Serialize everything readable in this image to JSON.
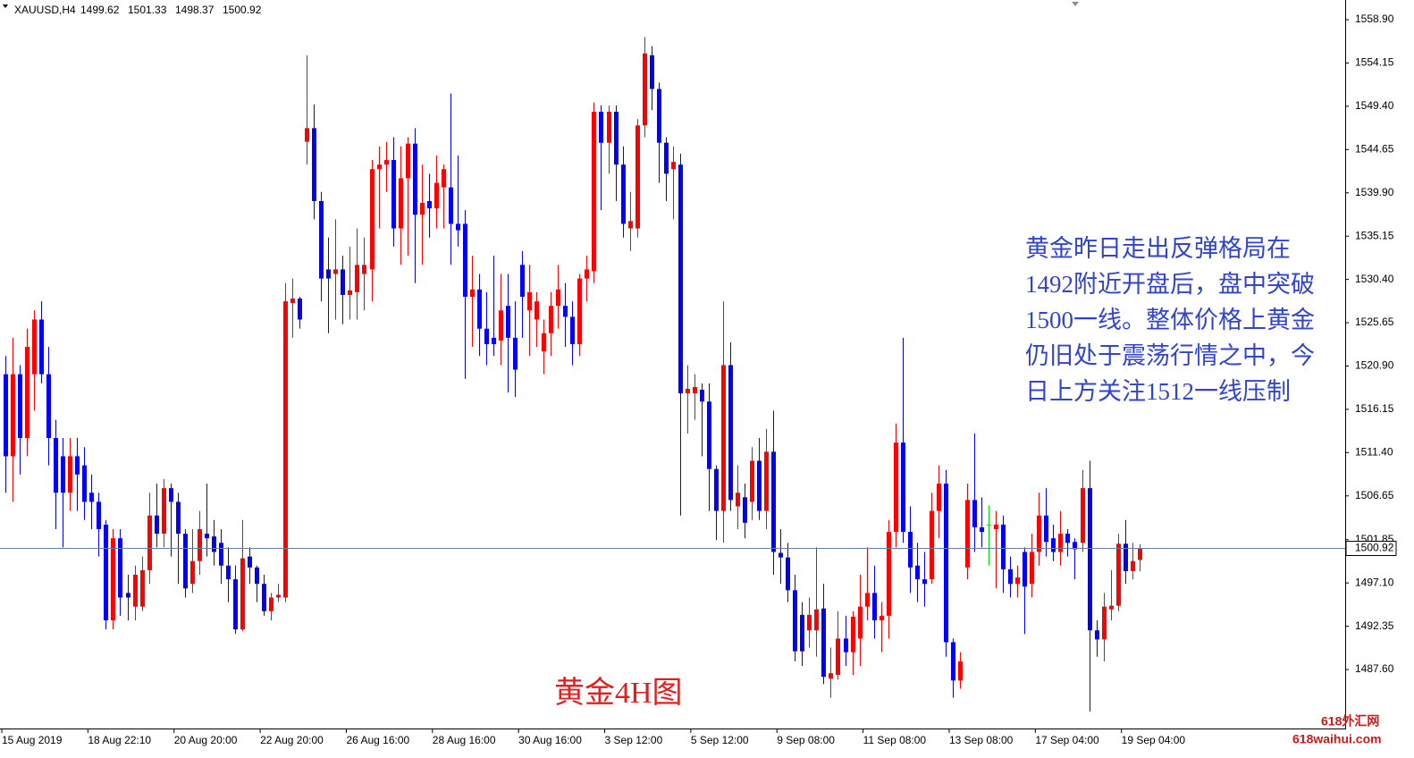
{
  "chart_data": {
    "type": "candlestick",
    "symbol": "XAUUSD,H4",
    "up_color": "#ff0000",
    "down_color": "#0000ff",
    "doji_color": "#00dd00",
    "ylim": [
      1481.13,
      1561.06
    ],
    "yticks": [
      {
        "value": 1558.9,
        "label": "1558.90"
      },
      1554.15,
      {
        "value": 1549.4,
        "label": "1549.40"
      },
      1544.65,
      {
        "value": 1539.9,
        "label": "1539.90"
      },
      1535.15,
      {
        "value": 1530.4,
        "label": "1530.40"
      },
      1525.65,
      {
        "value": 1520.9,
        "label": "1520.90"
      },
      1516.15,
      {
        "value": 1511.4,
        "label": "1511.40"
      },
      1506.65,
      1501.85,
      {
        "value": 1497.1,
        "label": "1497.10"
      },
      1492.35,
      {
        "value": 1487.6,
        "label": "1487.60"
      }
    ],
    "categories": [
      "15 Aug 2019",
      null,
      null,
      null,
      null,
      null,
      null,
      null,
      null,
      null,
      null,
      null,
      "18 Aug 22:10",
      null,
      null,
      null,
      null,
      null,
      null,
      null,
      null,
      null,
      null,
      null,
      "20 Aug 20:00",
      null,
      null,
      null,
      null,
      null,
      null,
      null,
      null,
      null,
      null,
      null,
      "22 Aug 20:00",
      null,
      null,
      null,
      null,
      null,
      null,
      null,
      null,
      null,
      null,
      null,
      "26 Aug 16:00",
      null,
      null,
      null,
      null,
      null,
      null,
      null,
      null,
      null,
      null,
      null,
      "28 Aug 16:00",
      null,
      null,
      null,
      null,
      null,
      null,
      null,
      null,
      null,
      null,
      null,
      "30 Aug 16:00",
      null,
      null,
      null,
      null,
      null,
      null,
      null,
      null,
      null,
      null,
      null,
      "3 Sep 12:00",
      null,
      null,
      null,
      null,
      null,
      null,
      null,
      null,
      null,
      null,
      null,
      "5 Sep 12:00",
      null,
      null,
      null,
      null,
      null,
      null,
      null,
      null,
      null,
      null,
      null,
      "9 Sep 08:00",
      null,
      null,
      null,
      null,
      null,
      null,
      null,
      null,
      null,
      null,
      null,
      "11 Sep 08:00",
      null,
      null,
      null,
      null,
      null,
      null,
      null,
      null,
      null,
      null,
      null,
      "13 Sep 08:00",
      null,
      null,
      null,
      null,
      null,
      null,
      null,
      null,
      null,
      null,
      null,
      "17 Sep 04:00",
      null,
      null,
      null,
      null,
      null,
      null,
      null,
      null,
      null,
      null,
      null,
      "19 Sep 04:00",
      null,
      null
    ],
    "open": [
      1520,
      1511,
      1520,
      1513,
      1520,
      1526,
      1520,
      1513,
      1511,
      1507,
      1511,
      1510,
      1507,
      1506,
      1503.5,
      1493,
      1502,
      1496,
      1494.5,
      1494.5,
      1498.5,
      1504.5,
      1502.5,
      1507.5,
      1506,
      1502.5,
      1497,
      1499.5,
      1502.5,
      1502.2,
      1501.5,
      1499,
      1497.5,
      1492,
      1500,
      1498.8,
      1497,
      1494,
      1495.5,
      1495.5,
      1527.8,
      1528.3,
      1545.5,
      1547,
      1539,
      1531.5,
      1531,
      1531.5,
      1528.7,
      1529,
      1531,
      1531.5,
      1542.5,
      1543,
      1543.5,
      1536,
      1541.5,
      1545.3,
      1537.5,
      1539,
      1538.2,
      1540.5,
      1540.5,
      1536.5,
      1536.5,
      1528.5,
      1529.3,
      1525,
      1524,
      1523.7,
      1527.5,
      1524,
      1532,
      1527,
      1526,
      1522.5,
      1524.5,
      1527.5,
      1527.5,
      1526.3,
      1523.3,
      1530.5,
      1531.3,
      1548.8,
      1545.4,
      1548.8,
      1543,
      1536,
      1536,
      1547.3,
      1555,
      1551.3,
      1545.4,
      1542.5,
      1543,
      1517.9,
      1517.9,
      1518.3,
      1517,
      1509.6,
      1505,
      1521,
      1505.5,
      1506.5,
      1506,
      1510.5,
      1505,
      1511.5,
      1500.4,
      1499.9,
      1496.3,
      1493.6,
      1491.9,
      1491.9,
      1494.3,
      1486.6,
      1487,
      1491,
      1489.5,
      1491,
      1494.5,
      1496,
      1493,
      1493.5,
      1502.7,
      1512.5,
      1502.7,
      1499,
      1497.5,
      1497.5,
      1505,
      1508,
      1490.6,
      1486.4,
      1498.8,
      1506.2,
      1503.2,
      1503.5,
      1503,
      1503.5,
      1498.6,
      1497,
      1500.5,
      1497,
      1500.5,
      1504.5,
      1502,
      1500.5,
      1502.5,
      1501.6,
      1501.5,
      1507.5,
      1491.9,
      1490.9,
      1494.2,
      1494.6,
      1501.4,
      1498.4,
      1499.62
    ],
    "high": [
      1522,
      1524,
      1521,
      1525,
      1527,
      1528,
      1523,
      1515,
      1513,
      1513,
      1513,
      1512,
      1509,
      1507,
      1504,
      1503,
      1503,
      1498,
      1499,
      1500,
      1507,
      1508,
      1508.5,
      1508,
      1507,
      1503,
      1503,
      1505,
      1508,
      1504,
      1503,
      1501,
      1499,
      1504,
      1501,
      1499,
      1498,
      1496,
      1497,
      1530,
      1530.5,
      1528.5,
      1555,
      1549.6,
      1540,
      1535,
      1537,
      1533,
      1534,
      1536,
      1535,
      1543.5,
      1545,
      1545.5,
      1546,
      1545,
      1546,
      1547,
      1543,
      1542,
      1544,
      1543,
      1550.8,
      1544,
      1538,
      1533,
      1531,
      1529,
      1533,
      1531,
      1531,
      1528,
      1533.5,
      1532,
      1529,
      1526,
      1529,
      1532,
      1530,
      1528,
      1531,
      1533,
      1549.8,
      1549.5,
      1549.5,
      1549.5,
      1545,
      1540,
      1548,
      1557,
      1556,
      1552,
      1546,
      1545,
      1544.2,
      1521,
      1520,
      1519,
      1519,
      1510,
      1528,
      1523.5,
      1510,
      1508,
      1512,
      1513,
      1514,
      1516,
      1503,
      1501.5,
      1498,
      1495,
      1495.5,
      1501,
      1497,
      1490,
      1494,
      1493.5,
      1494,
      1498,
      1501,
      1499,
      1495,
      1504,
      1514.6,
      1524,
      1505.5,
      1501.5,
      1500.5,
      1507,
      1510,
      1509.5,
      1491,
      1489.5,
      1508,
      1513.5,
      1506.5,
      1505.6,
      1505,
      1504.5,
      1500,
      1499,
      1501,
      1502.5,
      1507,
      1507.5,
      1503.5,
      1505,
      1503,
      1502,
      1509.5,
      1510.5,
      1493,
      1496,
      1498.5,
      1502.5,
      1504,
      1501.5,
      1501.33
    ],
    "low": [
      1507,
      1506,
      1509,
      1511,
      1516,
      1519,
      1510,
      1503,
      1501,
      1505,
      1505,
      1504,
      1503,
      1500,
      1492,
      1492,
      1493.5,
      1493,
      1493,
      1494,
      1497,
      1501,
      1501,
      1500,
      1497,
      1495.5,
      1496,
      1498,
      1500,
      1499,
      1497,
      1495,
      1491.5,
      1491.8,
      1497,
      1495,
      1493.5,
      1493,
      1495,
      1495,
      1524,
      1525,
      1543,
      1537,
      1528,
      1524.5,
      1526,
      1525.5,
      1526,
      1526,
      1527,
      1528,
      1536,
      1540,
      1534,
      1532,
      1533,
      1530,
      1532,
      1535,
      1536,
      1536,
      1532,
      1534,
      1519.5,
      1523,
      1522,
      1521,
      1522,
      1521,
      1518,
      1517.5,
      1524,
      1522,
      1523,
      1520,
      1522,
      1525,
      1523,
      1521,
      1522,
      1528,
      1530,
      1538,
      1542,
      1539,
      1535,
      1533.5,
      1535,
      1546,
      1549,
      1541,
      1539,
      1537,
      1504.5,
      1513.5,
      1515,
      1511,
      1505,
      1501.8,
      1501.5,
      1505,
      1503,
      1502,
      1504,
      1504,
      1503,
      1498,
      1497,
      1495,
      1488.5,
      1488,
      1490,
      1489,
      1486,
      1484.5,
      1486.5,
      1488,
      1487,
      1488,
      1493,
      1491,
      1489.5,
      1491,
      1501,
      1501.5,
      1496,
      1495,
      1494.5,
      1497,
      1502,
      1489,
      1484.5,
      1485.5,
      1497.5,
      1500.5,
      1501,
      1499,
      1496.5,
      1496,
      1495.5,
      1495.5,
      1491.5,
      1495.5,
      1499,
      1500,
      1499.5,
      1499,
      1500,
      1497.5,
      1500.5,
      1483,
      1489,
      1488.5,
      1493,
      1494,
      1497,
      1497.5,
      1498.37
    ],
    "close": [
      1511,
      1520,
      1513,
      1523,
      1526,
      1520,
      1513,
      1507,
      1507,
      1511,
      1509,
      1506,
      1506,
      1503,
      1493,
      1502,
      1495.5,
      1495.5,
      1498,
      1498.5,
      1504.5,
      1502.5,
      1507.5,
      1506,
      1502.5,
      1496.5,
      1499.5,
      1503,
      1502,
      1500.5,
      1499,
      1497.5,
      1492,
      1499.8,
      1498.8,
      1497,
      1494,
      1495.5,
      1495.8,
      1528,
      1528.3,
      1526,
      1547,
      1539,
      1530.5,
      1530.5,
      1531.5,
      1528.7,
      1529.2,
      1532,
      1532,
      1542.5,
      1543,
      1543.5,
      1536,
      1541.5,
      1545.3,
      1537.5,
      1538.8,
      1538.2,
      1541,
      1542.5,
      1536.5,
      1535.8,
      1528.5,
      1529.3,
      1525,
      1523.3,
      1523.3,
      1527,
      1524,
      1520.5,
      1528.5,
      1529,
      1528,
      1524.5,
      1527.5,
      1529.3,
      1526.3,
      1523.3,
      1530.5,
      1531.5,
      1548.8,
      1545.4,
      1548.8,
      1543,
      1536.5,
      1536.8,
      1547.3,
      1555.2,
      1551.3,
      1545.4,
      1542,
      1543.3,
      1517.9,
      1518.4,
      1518.6,
      1517,
      1509.6,
      1505,
      1521,
      1506.2,
      1507,
      1503.7,
      1510.5,
      1505,
      1511.5,
      1500.5,
      1499.9,
      1496.3,
      1489.6,
      1489.6,
      1493.6,
      1494.2,
      1486.8,
      1487.2,
      1491,
      1489.5,
      1493.4,
      1494.5,
      1496,
      1493,
      1493.5,
      1502.7,
      1512.5,
      1502.7,
      1498.8,
      1497.5,
      1497,
      1505,
      1508,
      1490.6,
      1486.4,
      1488.5,
      1506.2,
      1503.2,
      1502.7,
      1503.5,
      1503.5,
      1498.6,
      1497,
      1497.7,
      1496.7,
      1500.5,
      1504.5,
      1501.6,
      1500.5,
      1502.5,
      1501.5,
      1500.8,
      1507.5,
      1491.9,
      1490.9,
      1494.5,
      1494.6,
      1501.4,
      1498.4,
      1499.5,
      1500.92
    ],
    "annotation_lines": [
      "黄金昨日走出反弹格局在",
      "1492附近开盘后，盘中突破",
      "1500一线。整体价格上黄金",
      "仍旧处于震荡行情之中，今",
      "日上方关注1512一线压制"
    ],
    "label": "黄金4H图",
    "watermark": [
      "618外汇网",
      "618waihui.com"
    ]
  }
}
